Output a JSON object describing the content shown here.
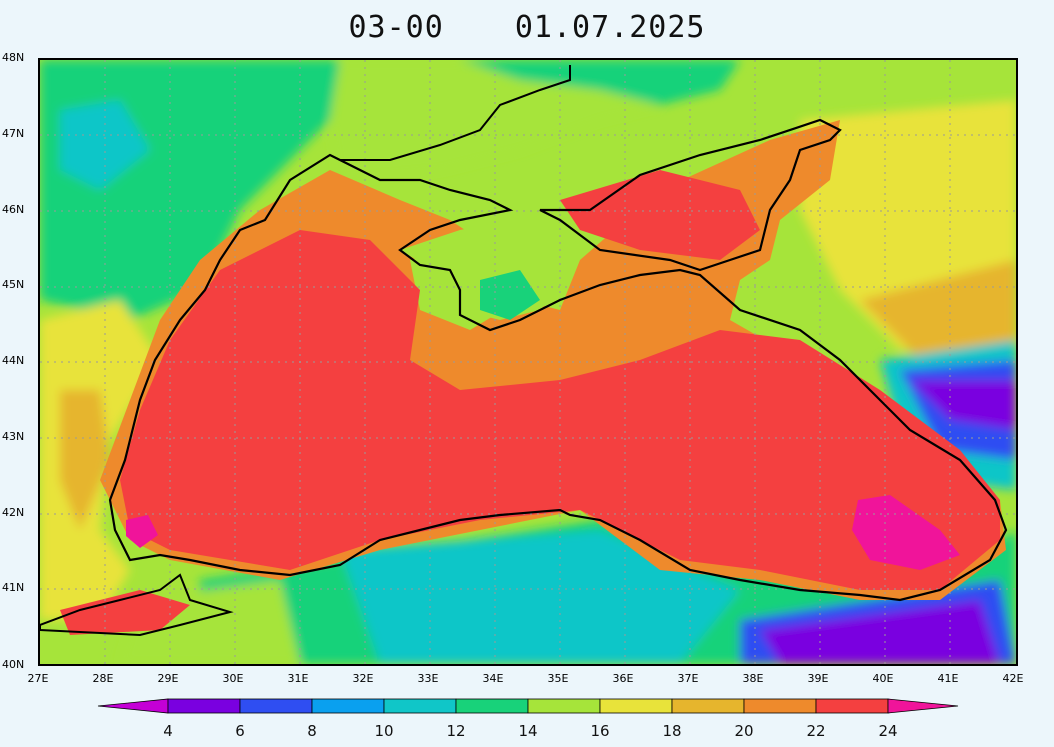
{
  "header": {
    "time": "03-00",
    "date": "01.07.2025"
  },
  "map": {
    "region": "Black Sea",
    "lat_labels": [
      "48N",
      "47N",
      "46N",
      "45N",
      "44N",
      "43N",
      "42N",
      "41N",
      "40N"
    ],
    "lon_labels": [
      "27E",
      "28E",
      "29E",
      "30E",
      "31E",
      "32E",
      "33E",
      "34E",
      "35E",
      "36E",
      "37E",
      "38E",
      "39E",
      "40E",
      "41E",
      "42E"
    ]
  },
  "colorbar": {
    "labels": [
      "4",
      "6",
      "8",
      "10",
      "12",
      "14",
      "16",
      "18",
      "20",
      "22",
      "24"
    ],
    "colors": [
      "#c400d6",
      "#7a00e0",
      "#2f4ef2",
      "#0aa0ef",
      "#10c6c8",
      "#18d27a",
      "#a6e43a",
      "#e8e33a",
      "#e6b52d",
      "#ee8a2c",
      "#f44040",
      "#f0149a"
    ],
    "below_color": "#c400d6",
    "above_color": "#f0149a"
  }
}
